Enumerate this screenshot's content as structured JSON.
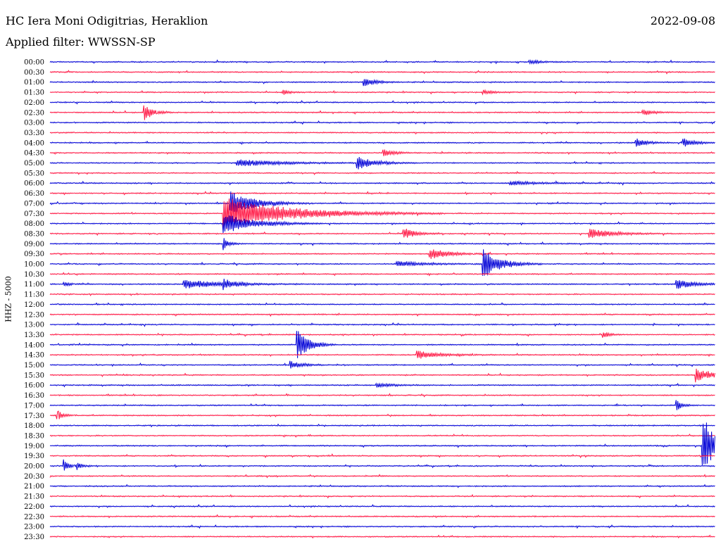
{
  "header": {
    "station": "HC Iera Moni Odigitrias, Heraklion",
    "date": "2022-09-08",
    "filter": "Applied filter: WWSSN-SP"
  },
  "chart_data": {
    "type": "line",
    "ylabel": "HHZ - 5000",
    "colors": {
      "even": "#0000d6",
      "odd": "#ff1744"
    },
    "rows": [
      "00:00",
      "00:30",
      "01:00",
      "01:30",
      "02:00",
      "02:30",
      "03:00",
      "03:30",
      "04:00",
      "04:30",
      "05:00",
      "05:30",
      "06:00",
      "06:30",
      "07:00",
      "07:30",
      "08:00",
      "08:30",
      "09:00",
      "09:30",
      "10:00",
      "10:30",
      "11:00",
      "11:30",
      "12:00",
      "12:30",
      "13:00",
      "13:30",
      "14:00",
      "14:30",
      "15:00",
      "15:30",
      "16:00",
      "16:30",
      "17:00",
      "17:30",
      "18:00",
      "18:30",
      "19:00",
      "19:30",
      "20:00",
      "20:30",
      "21:00",
      "21:30",
      "22:00",
      "22:30",
      "23:00",
      "23:30"
    ],
    "events": [
      {
        "row": 0,
        "t": 0.72,
        "amp": 3,
        "dur": 0.02
      },
      {
        "row": 2,
        "t": 0.47,
        "amp": 7,
        "dur": 0.02
      },
      {
        "row": 3,
        "t": 0.35,
        "amp": 4,
        "dur": 0.01
      },
      {
        "row": 3,
        "t": 0.65,
        "amp": 3,
        "dur": 0.02
      },
      {
        "row": 5,
        "t": 0.14,
        "amp": 14,
        "dur": 0.015
      },
      {
        "row": 5,
        "t": 0.89,
        "amp": 4,
        "dur": 0.02
      },
      {
        "row": 8,
        "t": 0.88,
        "amp": 6,
        "dur": 0.02
      },
      {
        "row": 8,
        "t": 0.95,
        "amp": 7,
        "dur": 0.02
      },
      {
        "row": 9,
        "t": 0.5,
        "amp": 5,
        "dur": 0.02
      },
      {
        "row": 10,
        "t": 0.28,
        "amp": 5,
        "dur": 0.07
      },
      {
        "row": 10,
        "t": 0.46,
        "amp": 10,
        "dur": 0.03
      },
      {
        "row": 12,
        "t": 0.69,
        "amp": 3,
        "dur": 0.05
      },
      {
        "row": 14,
        "t": 0.27,
        "amp": 18,
        "dur": 0.04
      },
      {
        "row": 15,
        "t": 0.26,
        "amp": 24,
        "dur": 0.11
      },
      {
        "row": 16,
        "t": 0.26,
        "amp": 15,
        "dur": 0.05
      },
      {
        "row": 17,
        "t": 0.53,
        "amp": 9,
        "dur": 0.02
      },
      {
        "row": 17,
        "t": 0.81,
        "amp": 7,
        "dur": 0.04
      },
      {
        "row": 18,
        "t": 0.26,
        "amp": 9,
        "dur": 0.01
      },
      {
        "row": 19,
        "t": 0.57,
        "amp": 9,
        "dur": 0.03
      },
      {
        "row": 20,
        "t": 0.65,
        "amp": 22,
        "dur": 0.03
      },
      {
        "row": 20,
        "t": 0.52,
        "amp": 4,
        "dur": 0.05
      },
      {
        "row": 22,
        "t": 0.02,
        "amp": 4,
        "dur": 0.01
      },
      {
        "row": 22,
        "t": 0.2,
        "amp": 7,
        "dur": 0.06
      },
      {
        "row": 22,
        "t": 0.26,
        "amp": 6,
        "dur": 0.02
      },
      {
        "row": 22,
        "t": 0.94,
        "amp": 8,
        "dur": 0.03
      },
      {
        "row": 27,
        "t": 0.83,
        "amp": 6,
        "dur": 0.01
      },
      {
        "row": 28,
        "t": 0.37,
        "amp": 24,
        "dur": 0.02
      },
      {
        "row": 29,
        "t": 0.55,
        "amp": 6,
        "dur": 0.04
      },
      {
        "row": 30,
        "t": 0.36,
        "amp": 6,
        "dur": 0.02
      },
      {
        "row": 31,
        "t": 0.97,
        "amp": 9,
        "dur": 0.03
      },
      {
        "row": 32,
        "t": 0.49,
        "amp": 3,
        "dur": 0.03
      },
      {
        "row": 34,
        "t": 0.94,
        "amp": 9,
        "dur": 0.01
      },
      {
        "row": 35,
        "t": 0.01,
        "amp": 8,
        "dur": 0.01
      },
      {
        "row": 38,
        "t": 0.98,
        "amp": 50,
        "dur": 0.02
      },
      {
        "row": 40,
        "t": 0.02,
        "amp": 9,
        "dur": 0.01
      },
      {
        "row": 40,
        "t": 0.04,
        "amp": 4,
        "dur": 0.01
      }
    ]
  }
}
